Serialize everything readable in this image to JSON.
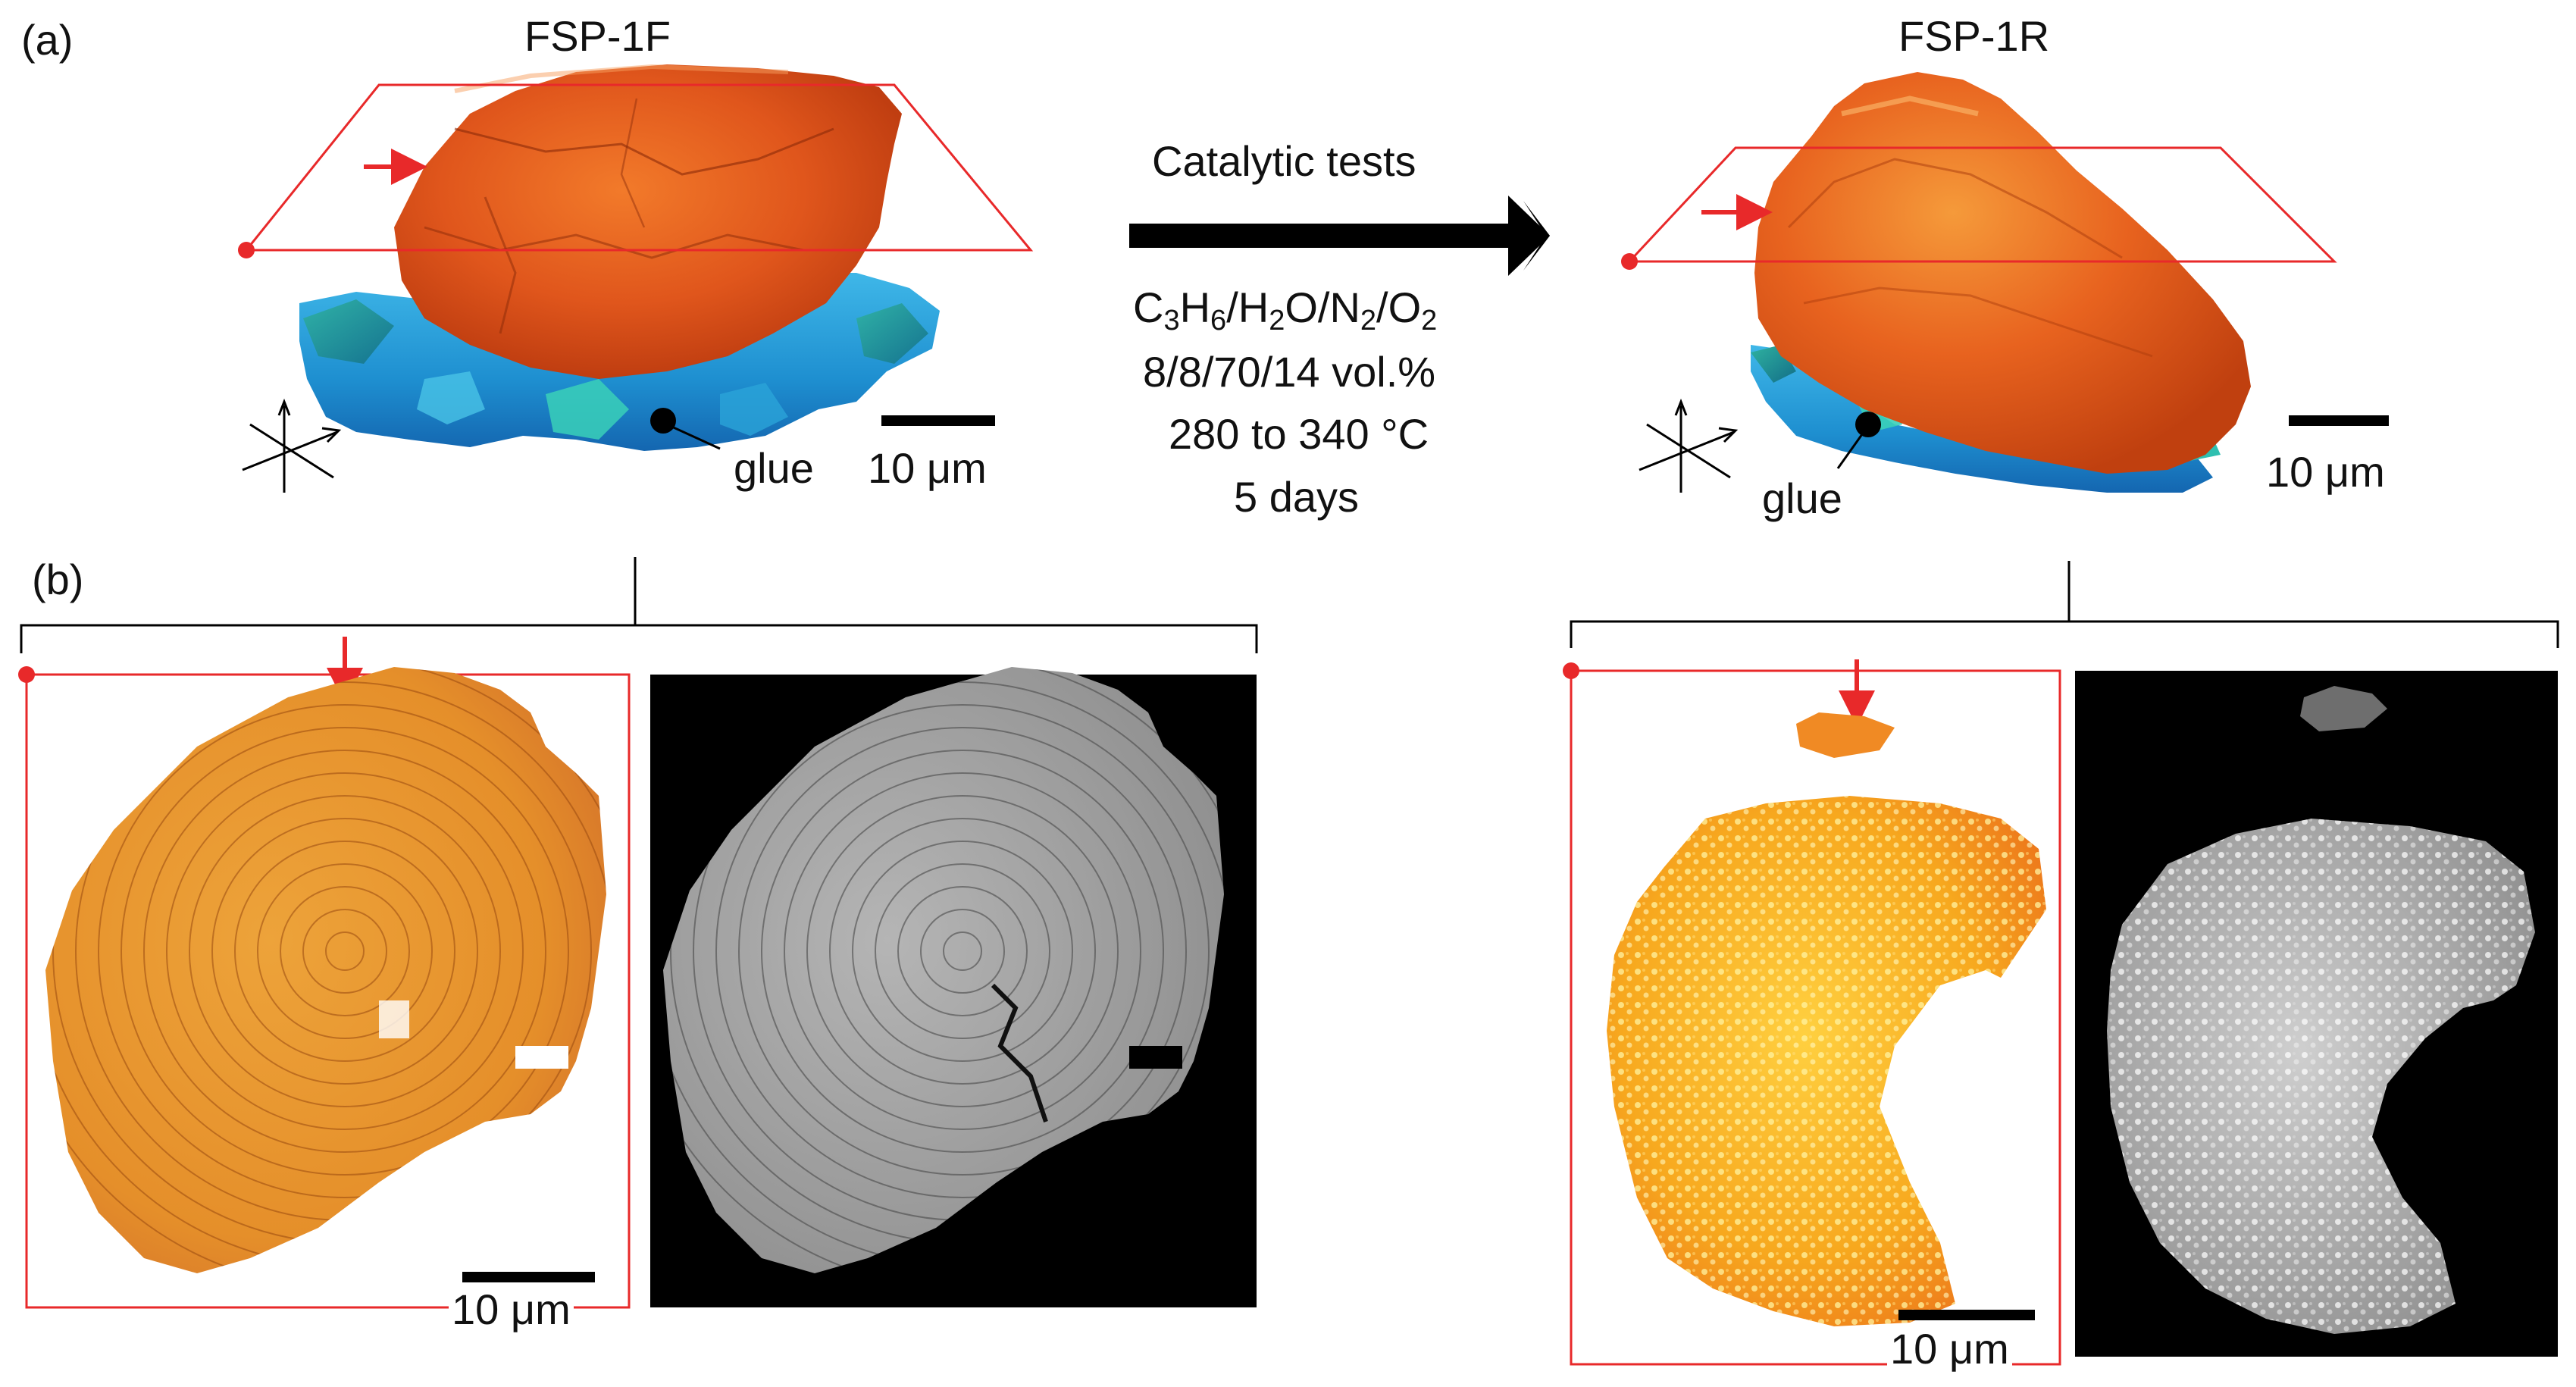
{
  "panels": {
    "a": {
      "label": "(a)"
    },
    "b": {
      "label": "(b)"
    }
  },
  "samples": {
    "fresh": {
      "title": "FSP-1F",
      "glue_label": "glue",
      "scale_label": "10 μm"
    },
    "reacted": {
      "title": "FSP-1R",
      "glue_label": "glue",
      "scale_label": "10 μm"
    }
  },
  "process": {
    "title": "Catalytic tests",
    "gas_parts": [
      "C",
      "3",
      "H",
      "6",
      "/H",
      "2",
      "O/N",
      "2",
      "/O",
      "2"
    ],
    "composition": "8/8/70/14 vol.%",
    "temperature": "280 to 340 °C",
    "duration": "5 days"
  },
  "slices": {
    "fresh_scale_label": "10 μm",
    "reacted_scale_label": "10 μm"
  },
  "colors": {
    "particle_orange": "#e0561c",
    "glue_blue": "#1e8fd0",
    "slice_fresh_orange": "#e8972c",
    "slice_reacted_orange": "#f3a21e",
    "highlight_red": "#e8292a",
    "black": "#000000"
  }
}
